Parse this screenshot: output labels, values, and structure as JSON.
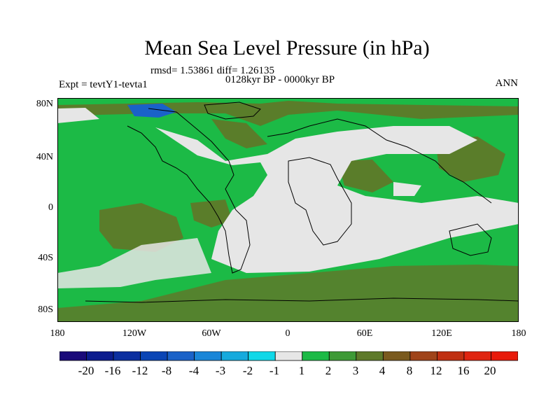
{
  "title": "Mean Sea Level Pressure (in hPa)",
  "stats": "rmsd= 1.53861 diff= 1.26135",
  "period": "0128kyr BP - 0000kyr BP",
  "experiment": "Expt = tevtY1-tevta1",
  "season": "ANN",
  "lat_labels": [
    "80N",
    "40N",
    "0",
    "40S",
    "80S"
  ],
  "lon_labels": [
    "180",
    "120W",
    "60W",
    "0",
    "60E",
    "120E",
    "180"
  ],
  "colorbar": {
    "labels": [
      "-20",
      "-16",
      "-12",
      "-8",
      "-4",
      "-3",
      "-2",
      "-1",
      "1",
      "2",
      "3",
      "4",
      "8",
      "12",
      "16",
      "20"
    ],
    "colors": [
      "#1a0a7a",
      "#0c1c8e",
      "#0c2fa0",
      "#0a45b5",
      "#1a62c8",
      "#1a86d8",
      "#16aadd",
      "#10d8e8",
      "#e6e6e6",
      "#1cba46",
      "#3e9a36",
      "#5e7a2a",
      "#7a5a1e",
      "#a0441a",
      "#c03012",
      "#e02510",
      "#e81a0a"
    ]
  }
}
